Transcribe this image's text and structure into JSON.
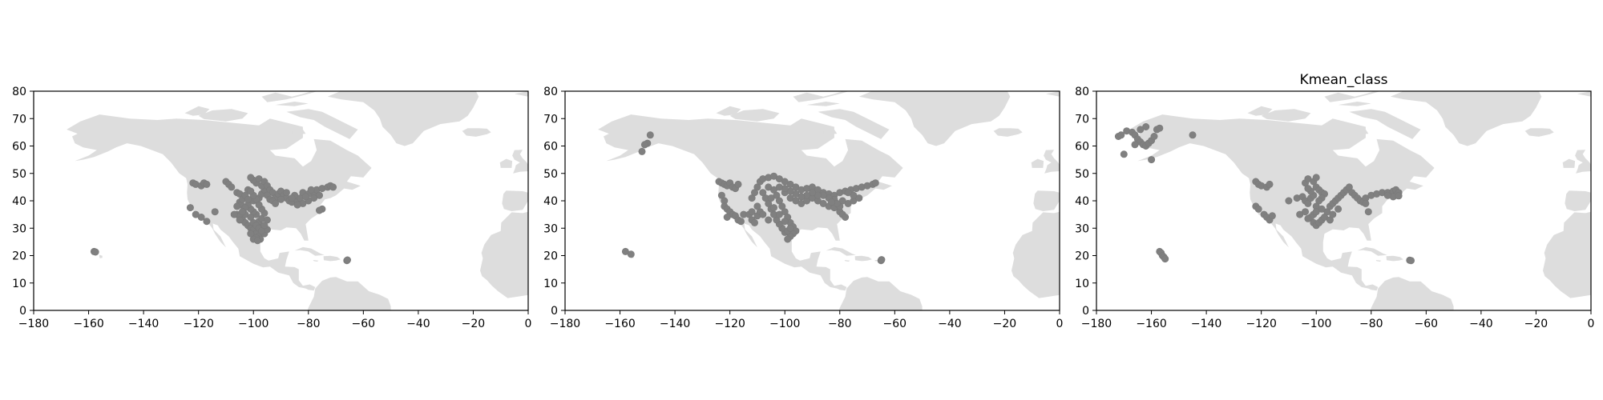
{
  "chart_data": [
    {
      "type": "scatter",
      "title": "",
      "xlabel": "",
      "ylabel": "",
      "xlim": [
        -180,
        0
      ],
      "ylim": [
        0,
        80
      ],
      "xticks": [
        -180,
        -160,
        -140,
        -120,
        -100,
        -80,
        -60,
        -40,
        -20,
        0
      ],
      "yticks": [
        0,
        10,
        20,
        30,
        40,
        50,
        60,
        70,
        80
      ],
      "grid": false,
      "background": "world-map-land",
      "point_color": "#808080",
      "land_color": "#dddddd",
      "points": [
        [
          -158,
          21.5
        ],
        [
          -157.5,
          21.3
        ],
        [
          -66,
          18.2
        ],
        [
          -65.8,
          18.4
        ],
        [
          -122,
          46.5
        ],
        [
          -121,
          46
        ],
        [
          -119,
          45.5
        ],
        [
          -118,
          46.5
        ],
        [
          -117,
          46
        ],
        [
          -123,
          37.5
        ],
        [
          -121,
          35
        ],
        [
          -119,
          34
        ],
        [
          -117,
          32.5
        ],
        [
          -114,
          36
        ],
        [
          -110,
          47
        ],
        [
          -109,
          46
        ],
        [
          -108,
          45
        ],
        [
          -106,
          43
        ],
        [
          -105,
          42.5
        ],
        [
          -105,
          39.5
        ],
        [
          -104.5,
          38.5
        ],
        [
          -106,
          35
        ],
        [
          -105,
          34.5
        ],
        [
          -104,
          33
        ],
        [
          -103,
          32
        ],
        [
          -102,
          31
        ],
        [
          -101,
          30
        ],
        [
          -100,
          29.5
        ],
        [
          -99,
          28
        ],
        [
          -98,
          27
        ],
        [
          -97.5,
          26
        ],
        [
          -99,
          26.5
        ],
        [
          -96,
          28
        ],
        [
          -95,
          29.5
        ],
        [
          -97,
          30.5
        ],
        [
          -98,
          32.5
        ],
        [
          -97,
          33.5
        ],
        [
          -99,
          35
        ],
        [
          -100,
          36
        ],
        [
          -101,
          37
        ],
        [
          -102,
          38.5
        ],
        [
          -100,
          40
        ],
        [
          -98,
          41
        ],
        [
          -97,
          42.5
        ],
        [
          -96,
          44
        ],
        [
          -97,
          45.5
        ],
        [
          -99,
          46.5
        ],
        [
          -100,
          47.5
        ],
        [
          -101,
          48.5
        ],
        [
          -98,
          48
        ],
        [
          -96,
          47
        ],
        [
          -95,
          45.5
        ],
        [
          -94,
          44
        ],
        [
          -93,
          43
        ],
        [
          -95,
          42
        ],
        [
          -94,
          40.5
        ],
        [
          -92,
          41
        ],
        [
          -91,
          42.5
        ],
        [
          -90,
          43.5
        ],
        [
          -89,
          42
        ],
        [
          -88,
          41
        ],
        [
          -87,
          40
        ],
        [
          -86,
          39.5
        ],
        [
          -84,
          40
        ],
        [
          -83,
          41
        ],
        [
          -85,
          42
        ],
        [
          -82,
          43
        ],
        [
          -80,
          42.5
        ],
        [
          -78,
          43
        ],
        [
          -77,
          44
        ],
        [
          -75,
          44.5
        ],
        [
          -73,
          45
        ],
        [
          -72,
          45.5
        ],
        [
          -71,
          45
        ],
        [
          -76,
          42
        ],
        [
          -78,
          41
        ],
        [
          -80,
          40
        ],
        [
          -82,
          39
        ],
        [
          -75,
          37
        ],
        [
          -76,
          36.5
        ],
        [
          -104,
          40.5
        ],
        [
          -103,
          42
        ],
        [
          -102,
          44
        ],
        [
          -103,
          35
        ],
        [
          -101,
          34
        ],
        [
          -100,
          32
        ],
        [
          -99,
          31
        ],
        [
          -98,
          30
        ],
        [
          -97,
          29
        ],
        [
          -96,
          31
        ],
        [
          -95,
          33
        ],
        [
          -96,
          35.5
        ],
        [
          -97,
          37
        ],
        [
          -98,
          38.5
        ],
        [
          -99,
          40.5
        ],
        [
          -100,
          42
        ],
        [
          -101,
          43.5
        ],
        [
          -102,
          40.5
        ],
        [
          -103,
          37.5
        ],
        [
          -100,
          26
        ],
        [
          -98.5,
          25.5
        ],
        [
          -105,
          33
        ],
        [
          -107,
          35
        ],
        [
          -106,
          38
        ],
        [
          -104,
          36
        ],
        [
          -101,
          28
        ],
        [
          -93,
          40
        ],
        [
          -92,
          39
        ],
        [
          -90,
          40.5
        ],
        [
          -88,
          43
        ],
        [
          -86,
          41
        ],
        [
          -84,
          38.5
        ],
        [
          -81,
          41.5
        ],
        [
          -79,
          44
        ]
      ]
    },
    {
      "type": "scatter",
      "title": "",
      "xlabel": "",
      "ylabel": "",
      "xlim": [
        -180,
        0
      ],
      "ylim": [
        0,
        80
      ],
      "xticks": [
        -180,
        -160,
        -140,
        -120,
        -100,
        -80,
        -60,
        -40,
        -20,
        0
      ],
      "yticks": [
        0,
        10,
        20,
        30,
        40,
        50,
        60,
        70,
        80
      ],
      "grid": false,
      "background": "world-map-land",
      "point_color": "#808080",
      "land_color": "#dddddd",
      "points": [
        [
          -149,
          64
        ],
        [
          -150,
          61
        ],
        [
          -151,
          60.5
        ],
        [
          -152,
          58
        ],
        [
          -158,
          21.5
        ],
        [
          -156,
          20.5
        ],
        [
          -65,
          18.2
        ],
        [
          -64.8,
          18.5
        ],
        [
          -124,
          47
        ],
        [
          -123,
          46.5
        ],
        [
          -122,
          46
        ],
        [
          -121,
          45.5
        ],
        [
          -120,
          46.5
        ],
        [
          -119,
          45
        ],
        [
          -118,
          44.5
        ],
        [
          -117,
          46
        ],
        [
          -123,
          42
        ],
        [
          -122,
          40
        ],
        [
          -122,
          38
        ],
        [
          -121,
          37
        ],
        [
          -120,
          36
        ],
        [
          -119,
          35
        ],
        [
          -118,
          34.5
        ],
        [
          -117,
          33
        ],
        [
          -116,
          32.5
        ],
        [
          -121,
          34
        ],
        [
          -115,
          35
        ],
        [
          -113,
          35
        ],
        [
          -112,
          33
        ],
        [
          -111,
          32
        ],
        [
          -110,
          34.5
        ],
        [
          -109,
          36
        ],
        [
          -112,
          41
        ],
        [
          -111,
          43
        ],
        [
          -110,
          45
        ],
        [
          -109,
          47
        ],
        [
          -108,
          48
        ],
        [
          -106,
          48.5
        ],
        [
          -104,
          49
        ],
        [
          -102,
          48
        ],
        [
          -100,
          47
        ],
        [
          -98,
          46
        ],
        [
          -96,
          45
        ],
        [
          -94,
          44
        ],
        [
          -92,
          44.5
        ],
        [
          -90,
          45
        ],
        [
          -88,
          44
        ],
        [
          -86,
          43
        ],
        [
          -84,
          42.5
        ],
        [
          -82,
          42
        ],
        [
          -80,
          43
        ],
        [
          -78,
          43.5
        ],
        [
          -76,
          44
        ],
        [
          -74,
          44.5
        ],
        [
          -72,
          45
        ],
        [
          -70,
          45.5
        ],
        [
          -68,
          46
        ],
        [
          -67,
          46.5
        ],
        [
          -104,
          44
        ],
        [
          -103,
          42
        ],
        [
          -102,
          40
        ],
        [
          -101,
          38
        ],
        [
          -100,
          36
        ],
        [
          -99,
          34
        ],
        [
          -98,
          32
        ],
        [
          -97,
          30.5
        ],
        [
          -96,
          29
        ],
        [
          -97,
          28
        ],
        [
          -98,
          27
        ],
        [
          -99,
          26
        ],
        [
          -100,
          28.5
        ],
        [
          -101,
          30
        ],
        [
          -102,
          31.5
        ],
        [
          -103,
          33
        ],
        [
          -104,
          35
        ],
        [
          -105,
          37
        ],
        [
          -106,
          39
        ],
        [
          -107,
          41
        ],
        [
          -108,
          43
        ],
        [
          -106,
          45
        ],
        [
          -100,
          43
        ],
        [
          -98,
          41
        ],
        [
          -96,
          40
        ],
        [
          -94,
          39
        ],
        [
          -92,
          40
        ],
        [
          -90,
          41
        ],
        [
          -88,
          40
        ],
        [
          -86,
          39
        ],
        [
          -84,
          38
        ],
        [
          -82,
          37.5
        ],
        [
          -80,
          36
        ],
        [
          -79,
          35
        ],
        [
          -78,
          34
        ],
        [
          -80,
          38
        ],
        [
          -82,
          40.5
        ],
        [
          -84,
          41
        ],
        [
          -86,
          42
        ],
        [
          -88,
          42
        ],
        [
          -90,
          43
        ],
        [
          -92,
          42
        ],
        [
          -94,
          41.5
        ],
        [
          -96,
          42.5
        ],
        [
          -98,
          43.5
        ],
        [
          -100,
          44.5
        ],
        [
          -102,
          45
        ],
        [
          -77,
          39
        ],
        [
          -75,
          40
        ],
        [
          -73,
          41
        ],
        [
          -75,
          42
        ],
        [
          -77,
          43
        ],
        [
          -79,
          40
        ],
        [
          -81,
          39
        ],
        [
          -83,
          39.5
        ],
        [
          -99,
          29
        ],
        [
          -98,
          30
        ],
        [
          -100,
          32.5
        ],
        [
          -102,
          35
        ],
        [
          -104,
          37.5
        ],
        [
          -105,
          41
        ],
        [
          -106,
          33
        ],
        [
          -108,
          35
        ],
        [
          -110,
          38
        ],
        [
          -112,
          36
        ]
      ]
    },
    {
      "type": "scatter",
      "title": "Kmean_class",
      "xlabel": "",
      "ylabel": "",
      "xlim": [
        -180,
        0
      ],
      "ylim": [
        0,
        80
      ],
      "xticks": [
        -180,
        -160,
        -140,
        -120,
        -100,
        -80,
        -60,
        -40,
        -20,
        0
      ],
      "yticks": [
        0,
        10,
        20,
        30,
        40,
        50,
        60,
        70,
        80
      ],
      "grid": false,
      "background": "world-map-land",
      "point_color": "#808080",
      "land_color": "#dddddd",
      "points": [
        [
          -172,
          63.5
        ],
        [
          -171,
          64
        ],
        [
          -169,
          65.5
        ],
        [
          -167,
          65
        ],
        [
          -166,
          64
        ],
        [
          -165,
          62.5
        ],
        [
          -164,
          61.5
        ],
        [
          -163,
          60.5
        ],
        [
          -162,
          60
        ],
        [
          -161,
          61
        ],
        [
          -160,
          62
        ],
        [
          -159,
          63.5
        ],
        [
          -158,
          66
        ],
        [
          -157,
          66.5
        ],
        [
          -162,
          67
        ],
        [
          -164,
          66
        ],
        [
          -166,
          60.5
        ],
        [
          -170,
          57
        ],
        [
          -160,
          55
        ],
        [
          -145,
          64
        ],
        [
          -157,
          21.5
        ],
        [
          -156.5,
          21
        ],
        [
          -156,
          20
        ],
        [
          -155.5,
          19.5
        ],
        [
          -155,
          18.8
        ],
        [
          -66,
          18.3
        ],
        [
          -65.5,
          18.2
        ],
        [
          -122,
          47
        ],
        [
          -121,
          46
        ],
        [
          -120,
          45.5
        ],
        [
          -118,
          45
        ],
        [
          -117,
          46
        ],
        [
          -122,
          38
        ],
        [
          -121,
          37
        ],
        [
          -119,
          35
        ],
        [
          -118,
          34
        ],
        [
          -117,
          33
        ],
        [
          -116,
          34.5
        ],
        [
          -110,
          40
        ],
        [
          -107,
          41
        ],
        [
          -105,
          41.5
        ],
        [
          -104,
          40
        ],
        [
          -103,
          39
        ],
        [
          -102,
          41
        ],
        [
          -101,
          42
        ],
        [
          -102,
          43.5
        ],
        [
          -103,
          44.5
        ],
        [
          -104,
          46.5
        ],
        [
          -103,
          48
        ],
        [
          -101,
          47
        ],
        [
          -100,
          48.5
        ],
        [
          -100,
          45
        ],
        [
          -99,
          44
        ],
        [
          -98,
          43
        ],
        [
          -97,
          42.5
        ],
        [
          -98,
          41
        ],
        [
          -99,
          40
        ],
        [
          -100,
          38
        ],
        [
          -101,
          35
        ],
        [
          -102,
          34
        ],
        [
          -103,
          33.5
        ],
        [
          -101,
          32
        ],
        [
          -100,
          31
        ],
        [
          -99,
          32
        ],
        [
          -98,
          33
        ],
        [
          -97,
          34
        ],
        [
          -96,
          36
        ],
        [
          -95,
          38
        ],
        [
          -94,
          39
        ],
        [
          -93,
          40
        ],
        [
          -92,
          41
        ],
        [
          -91,
          42
        ],
        [
          -90,
          43
        ],
        [
          -89,
          44
        ],
        [
          -88,
          45
        ],
        [
          -87,
          43
        ],
        [
          -86,
          42
        ],
        [
          -85,
          41
        ],
        [
          -84,
          40
        ],
        [
          -83,
          39.5
        ],
        [
          -82,
          41
        ],
        [
          -80,
          42
        ],
        [
          -78,
          42.5
        ],
        [
          -76,
          43
        ],
        [
          -74,
          43
        ],
        [
          -72,
          43.5
        ],
        [
          -71,
          44
        ],
        [
          -70,
          43
        ],
        [
          -71,
          42
        ],
        [
          -72,
          41.5
        ],
        [
          -70,
          41.8
        ],
        [
          -74,
          42
        ],
        [
          -81,
          36
        ],
        [
          -82,
          39
        ],
        [
          -95,
          33
        ],
        [
          -94,
          35
        ],
        [
          -92,
          37
        ],
        [
          -104,
          36
        ],
        [
          -106,
          35
        ],
        [
          -100,
          36
        ],
        [
          -98,
          37
        ]
      ]
    }
  ]
}
